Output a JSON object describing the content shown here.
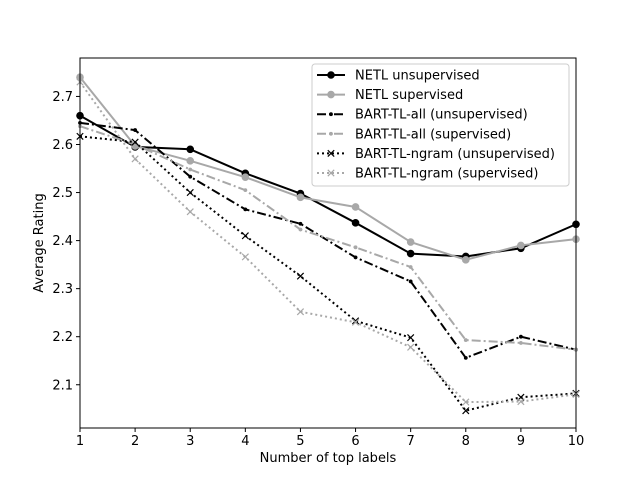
{
  "chart_data": {
    "type": "line",
    "xlabel": "Number of top labels",
    "ylabel": "Average Rating",
    "xlim": [
      1,
      10
    ],
    "ylim": [
      2.01,
      2.78
    ],
    "xticks": [
      "1",
      "2",
      "3",
      "4",
      "5",
      "6",
      "7",
      "8",
      "9",
      "10"
    ],
    "yticks": [
      "2.1",
      "2.2",
      "2.3",
      "2.4",
      "2.5",
      "2.6",
      "2.7"
    ],
    "grid": false,
    "legend_position": "top-right",
    "x": [
      1,
      2,
      3,
      4,
      5,
      6,
      7,
      8,
      9,
      10
    ],
    "series": [
      {
        "name": "NETL unsupervised",
        "color": "#000000",
        "marker": "circle",
        "dash": "solid",
        "values": [
          2.66,
          2.595,
          2.59,
          2.54,
          2.498,
          2.437,
          2.373,
          2.367,
          2.384,
          2.434
        ]
      },
      {
        "name": "NETL supervised",
        "color": "#a8a8a8",
        "marker": "circle",
        "dash": "solid",
        "values": [
          2.74,
          2.597,
          2.566,
          2.532,
          2.49,
          2.47,
          2.397,
          2.36,
          2.39,
          2.403
        ]
      },
      {
        "name": "BART-TL-all (unsupervised)",
        "color": "#000000",
        "marker": "dot",
        "dash": "dashdot",
        "values": [
          2.645,
          2.63,
          2.533,
          2.465,
          2.435,
          2.365,
          2.315,
          2.156,
          2.2,
          2.173
        ]
      },
      {
        "name": "BART-TL-all (supervised)",
        "color": "#a8a8a8",
        "marker": "dot",
        "dash": "dashdot",
        "values": [
          2.638,
          2.6,
          2.548,
          2.505,
          2.423,
          2.386,
          2.345,
          2.193,
          2.187,
          2.173
        ]
      },
      {
        "name": "BART-TL-ngram (unsupervised)",
        "color": "#000000",
        "marker": "x",
        "dash": "dotted",
        "values": [
          2.617,
          2.605,
          2.5,
          2.41,
          2.326,
          2.233,
          2.198,
          2.046,
          2.074,
          2.082
        ]
      },
      {
        "name": "BART-TL-ngram (supervised)",
        "color": "#a8a8a8",
        "marker": "x",
        "dash": "dotted",
        "values": [
          2.73,
          2.57,
          2.46,
          2.366,
          2.252,
          2.23,
          2.178,
          2.064,
          2.065,
          2.08
        ]
      }
    ]
  }
}
